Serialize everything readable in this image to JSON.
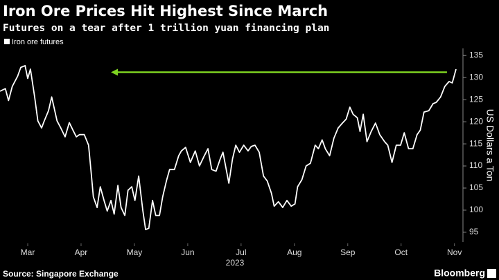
{
  "chart_data": {
    "type": "line",
    "title": "Iron Ore Prices Hit Highest Since March",
    "subtitle": "Futures on a tear after 1 trillion yuan financing plan",
    "y_label": "US Dollars a Ton",
    "x_label": "2023",
    "source": "Source: Singapore Exchange",
    "brand": "Bloomberg",
    "legend": "top-left",
    "x": [
      2.48,
      2.58,
      2.64,
      2.71,
      2.81,
      2.87,
      2.95,
      3.0,
      3.05,
      3.13,
      3.19,
      3.26,
      3.31,
      3.39,
      3.45,
      3.55,
      3.62,
      3.7,
      3.78,
      3.86,
      3.91,
      3.97,
      4.06,
      4.14,
      4.19,
      4.23,
      4.3,
      4.36,
      4.43,
      4.49,
      4.56,
      4.62,
      4.69,
      4.75,
      4.82,
      4.88,
      4.95,
      5.01,
      5.08,
      5.16,
      5.21,
      5.27,
      5.34,
      5.4,
      5.47,
      5.53,
      5.6,
      5.66,
      5.75,
      5.83,
      5.88,
      5.96,
      6.05,
      6.14,
      6.22,
      6.31,
      6.38,
      6.45,
      6.53,
      6.61,
      6.66,
      6.77,
      6.84,
      6.9,
      6.97,
      7.05,
      7.13,
      7.19,
      7.26,
      7.34,
      7.42,
      7.49,
      7.57,
      7.62,
      7.7,
      7.78,
      7.86,
      7.94,
      8.01,
      8.06,
      8.14,
      8.22,
      8.3,
      8.39,
      8.45,
      8.52,
      8.58,
      8.66,
      8.74,
      8.82,
      8.9,
      8.97,
      9.04,
      9.1,
      9.18,
      9.23,
      9.29,
      9.36,
      9.44,
      9.52,
      9.6,
      9.69,
      9.75,
      9.83,
      9.91,
      9.99,
      10.06,
      10.14,
      10.22,
      10.3,
      10.36,
      10.43,
      10.52,
      10.6,
      10.66,
      10.74,
      10.82,
      10.9,
      10.96,
      11.03
    ],
    "series": [
      {
        "name": "Iron ore futures",
        "color": "#ffffff",
        "values": [
          126.9,
          127.5,
          124.8,
          128,
          130.3,
          132.3,
          132.7,
          129.8,
          131.9,
          125.6,
          120.2,
          118.6,
          120.2,
          122.5,
          125.6,
          120.2,
          118.6,
          116.6,
          119.8,
          117.8,
          116.6,
          117.1,
          117.1,
          114.7,
          108.4,
          103,
          100.6,
          105.3,
          102.2,
          99.8,
          102.2,
          99.1,
          105.6,
          100.6,
          98.8,
          104.5,
          105.3,
          102.2,
          107.7,
          99.8,
          95.6,
          95.9,
          102.2,
          98.8,
          98.8,
          103,
          106.6,
          109.2,
          109.2,
          112.3,
          113.4,
          114.2,
          110.8,
          113.4,
          110,
          112.3,
          113.9,
          109.2,
          108.8,
          111.6,
          113.1,
          106.1,
          111.6,
          114.7,
          113.1,
          114.7,
          113.4,
          114.4,
          114.7,
          113.1,
          107.7,
          106.6,
          103.8,
          100.9,
          101.9,
          100.6,
          102.2,
          100.9,
          101.4,
          105.3,
          106.9,
          110,
          110.6,
          114.7,
          113.9,
          115.9,
          113.9,
          112.3,
          116.3,
          118.6,
          119.7,
          120.6,
          123.3,
          121.7,
          120.9,
          117.8,
          121.7,
          115.5,
          117.8,
          119.7,
          117.1,
          115.5,
          114.7,
          110.8,
          114.7,
          114.7,
          117.5,
          113.9,
          113.9,
          117.1,
          118.1,
          122.2,
          122.5,
          124.1,
          124.4,
          125.6,
          128,
          129.1,
          128.8,
          131.9
        ]
      }
    ],
    "xlim": [
      2.48,
      11.16
    ],
    "xticks": [
      {
        "value": 3,
        "label": "Mar"
      },
      {
        "value": 4,
        "label": "Apr"
      },
      {
        "value": 5,
        "label": "May"
      },
      {
        "value": 6,
        "label": "Jun"
      },
      {
        "value": 7,
        "label": "Jul"
      },
      {
        "value": 8,
        "label": "Aug"
      },
      {
        "value": 9,
        "label": "Sep"
      },
      {
        "value": 10,
        "label": "Oct"
      },
      {
        "value": 11,
        "label": "Nov"
      }
    ],
    "ylim": [
      92.8,
      136.6
    ],
    "yticks": [
      95,
      100,
      105,
      110,
      115,
      120,
      125,
      130,
      135
    ],
    "arrow": {
      "y": 131.2,
      "x": [
        4.56,
        10.86
      ],
      "color": "#7ed321"
    }
  }
}
